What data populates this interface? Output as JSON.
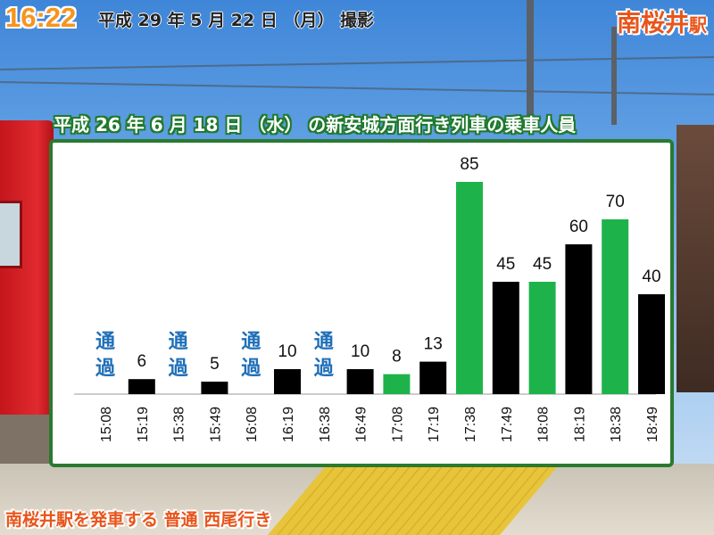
{
  "header": {
    "time": "16:22",
    "photo_date": "平成 29 年 5 月 22 日 （月） 撮影",
    "station_name": "南桜井",
    "station_suffix": "駅"
  },
  "footer": {
    "caption": "南桜井駅を発車する 普通 西尾行き"
  },
  "colors": {
    "local": "#000000",
    "highlight": "#1db34a",
    "pass_text": "#1f6fb8",
    "frame": "#2a7a30"
  },
  "chart_data": {
    "type": "bar",
    "title": "平成 26 年 6 月 18 日 （水） の新安城方面行き列車の乗車人員",
    "xlabel": "",
    "ylabel": "",
    "ylim": [
      0,
      90
    ],
    "grid": false,
    "categories": [
      "15:08",
      "15:19",
      "15:38",
      "15:49",
      "16:08",
      "16:19",
      "16:38",
      "16:49",
      "17:08",
      "17:19",
      "17:38",
      "17:49",
      "18:08",
      "18:19",
      "18:38",
      "18:49"
    ],
    "values": [
      null,
      6,
      null,
      5,
      null,
      10,
      null,
      10,
      8,
      13,
      85,
      45,
      45,
      60,
      70,
      40
    ],
    "labels": [
      "通過",
      "6",
      "通過",
      "5",
      "通過",
      "10",
      "通過",
      "10",
      "8",
      "13",
      "85",
      "45",
      "45",
      "60",
      "70",
      "40"
    ],
    "colors": [
      "",
      "black",
      "",
      "black",
      "",
      "black",
      "",
      "black",
      "green",
      "black",
      "green",
      "black",
      "green",
      "black",
      "green",
      "black"
    ]
  }
}
